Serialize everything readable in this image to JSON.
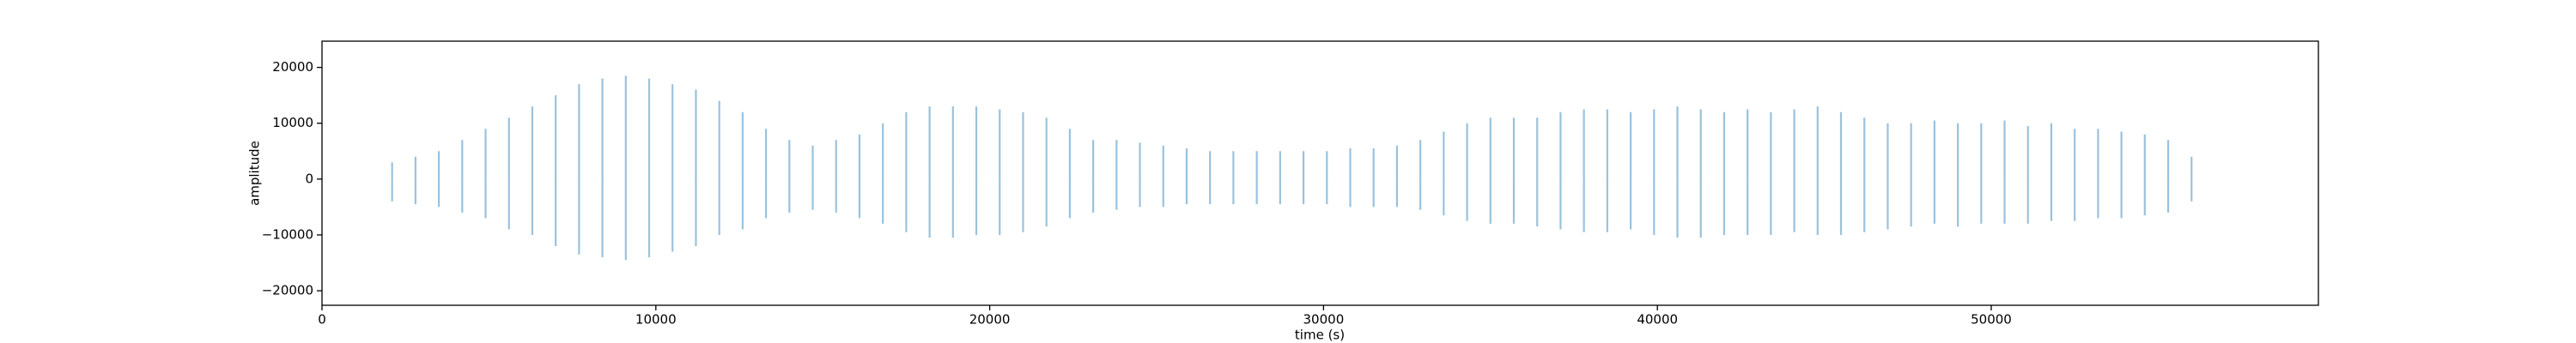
{
  "chart_data": {
    "type": "waveform",
    "x_label": "time (s)",
    "y_label": "amplitude",
    "xlim": [
      0,
      59800
    ],
    "ylim": [
      -22600,
      24700
    ],
    "xticks": [
      0,
      10000,
      20000,
      30000,
      40000,
      50000
    ],
    "yticks": [
      {
        "value": -20000,
        "label": "−20000"
      },
      {
        "value": -10000,
        "label": "−10000"
      },
      0,
      10000,
      20000
    ],
    "x": [
      2100,
      2800,
      3500,
      4200,
      4900,
      5600,
      6300,
      7000,
      7700,
      8400,
      9100,
      9800,
      10500,
      11200,
      11900,
      12600,
      13300,
      14000,
      14700,
      15400,
      16100,
      16800,
      17500,
      18200,
      18900,
      19600,
      20300,
      21000,
      21700,
      22400,
      23100,
      23800,
      24500,
      25200,
      25900,
      26600,
      27300,
      28000,
      28700,
      29400,
      30100,
      30800,
      31500,
      32200,
      32900,
      33600,
      34300,
      35000,
      35700,
      36400,
      37100,
      37800,
      38500,
      39200,
      39900,
      40600,
      41300,
      42000,
      42700,
      43400,
      44100,
      44800,
      45500,
      46200,
      46900,
      47600,
      48300,
      49000,
      49700,
      50400,
      51100,
      51800,
      52500,
      53200,
      53900,
      54600,
      55300,
      56000
    ],
    "series": [
      {
        "color": "#1f77b4",
        "values": [
          3000,
          4000,
          5000,
          7000,
          9000,
          11000,
          13000,
          15000,
          17000,
          18000,
          18500,
          18000,
          17000,
          16000,
          14000,
          12000,
          9000,
          7000,
          6000,
          7000,
          8000,
          10000,
          12000,
          13000,
          13000,
          13000,
          12500,
          12000,
          11000,
          9000,
          7000,
          7000,
          6500,
          6000,
          5500,
          5000,
          5000,
          5000,
          5000,
          5000,
          5000,
          5500,
          5500,
          6000,
          7000,
          8500,
          10000,
          11000,
          11000,
          11000,
          12000,
          12500,
          12500,
          12000,
          12500,
          13000,
          12500,
          12000,
          12500,
          12000,
          12500,
          13000,
          12000,
          11000,
          10000,
          10000,
          10500,
          10000,
          10000,
          10500,
          9500,
          10000,
          9000,
          9000,
          8500,
          8000,
          7000,
          4000
        ]
      },
      {
        "color": "#1f77b4",
        "values": [
          -4000,
          -4500,
          -5000,
          -6000,
          -7000,
          -9000,
          -10000,
          -12000,
          -13500,
          -14000,
          -14500,
          -14000,
          -13000,
          -12000,
          -10000,
          -9000,
          -7000,
          -6000,
          -5500,
          -6000,
          -7000,
          -8000,
          -9500,
          -10500,
          -10500,
          -10000,
          -10000,
          -9500,
          -8500,
          -7000,
          -6000,
          -5500,
          -5000,
          -5000,
          -4500,
          -4500,
          -4500,
          -4500,
          -4500,
          -4500,
          -4500,
          -5000,
          -5000,
          -5000,
          -5500,
          -6500,
          -7500,
          -8000,
          -8000,
          -8500,
          -9000,
          -9500,
          -9500,
          -9000,
          -10000,
          -10500,
          -10500,
          -10000,
          -10000,
          -10000,
          -9500,
          -10000,
          -10000,
          -9500,
          -9000,
          -8500,
          -8000,
          -8500,
          -8000,
          -8000,
          -8000,
          -7500,
          -7500,
          -7000,
          -7000,
          -6500,
          -6000,
          -4000
        ]
      }
    ]
  }
}
